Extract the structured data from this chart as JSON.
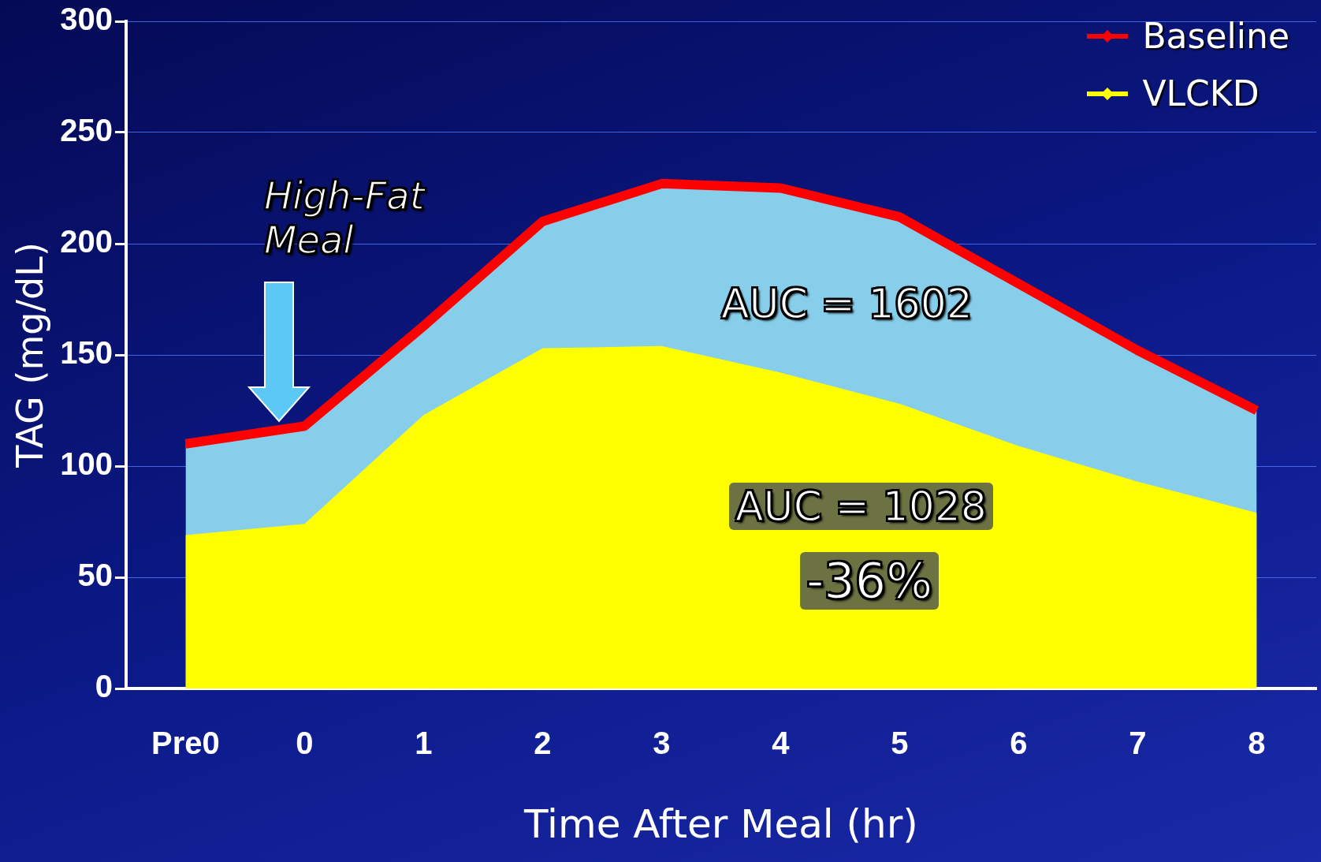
{
  "chart_data": {
    "type": "area",
    "xlabel": "Time After Meal (hr)",
    "ylabel": "TAG (mg/dL)",
    "categories": [
      "Pre0",
      "0",
      "1",
      "2",
      "3",
      "4",
      "5",
      "6",
      "7",
      "8"
    ],
    "series": [
      {
        "color": "#87ceeb",
        "values": [
          110,
          118,
          163,
          210,
          227,
          225,
          212,
          182,
          152,
          125
        ]
      },
      {
        "name": "Baseline",
        "type": "line",
        "color": "#ff0000",
        "values": [
          110,
          118,
          163,
          210,
          227,
          225,
          212,
          182,
          152,
          125
        ]
      },
      {
        "name": "VLCKD",
        "color": "#ffff00",
        "values": [
          69,
          74,
          123,
          153,
          154,
          142,
          128,
          109,
          93,
          79
        ]
      }
    ],
    "ylim": [
      0,
      300
    ],
    "yticks": [
      0,
      50,
      100,
      150,
      200,
      250,
      300
    ],
    "grid": "y",
    "legend": "top right",
    "annotations": [
      "High-Fat Meal",
      "AUC = 1602",
      "AUC = 1028",
      "-36%"
    ]
  }
}
